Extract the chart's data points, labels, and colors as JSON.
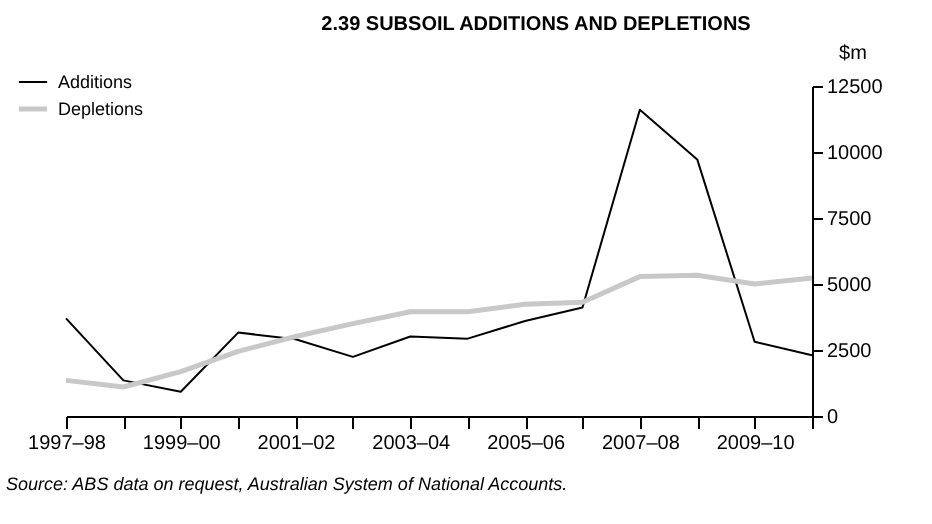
{
  "chart_data": {
    "type": "line",
    "title": "2.39   SUBSOIL ADDITIONS AND DEPLETIONS",
    "ylabel": "$m",
    "categories": [
      "1997–98",
      null,
      "1999–00",
      null,
      "2001–02",
      null,
      "2003–04",
      null,
      "2005–06",
      null,
      "2007–08",
      null,
      "2009–10",
      null
    ],
    "series": [
      {
        "name": "Additions",
        "color": "#000000",
        "values": [
          3700,
          1350,
          920,
          3160,
          2910,
          2240,
          3010,
          2930,
          3600,
          4110,
          11600,
          9720,
          2810,
          2300
        ]
      },
      {
        "name": "Depletions",
        "color": "#c8c8c8",
        "values": [
          1350,
          1100,
          1680,
          2450,
          3010,
          3500,
          3950,
          3950,
          4230,
          4310,
          5280,
          5330,
          5000,
          5230
        ]
      }
    ],
    "ylim": [
      0,
      12500
    ],
    "yticks": [
      0,
      2500,
      5000,
      7500,
      10000,
      12500
    ],
    "grid": false,
    "legend": "top left",
    "marker": "none",
    "line_style": "solid",
    "annotations": [
      "Source: ABS data on request, Australian System of National Accounts."
    ]
  }
}
